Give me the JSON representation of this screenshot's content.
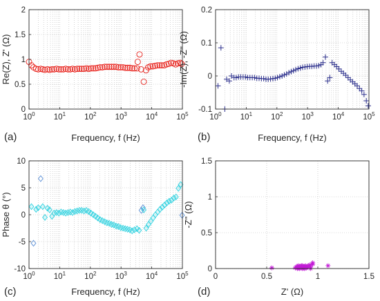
{
  "chart_data": [
    {
      "id": "a",
      "panel_label": "(a)",
      "type": "scatter",
      "marker": "circle",
      "color": "#e8201a",
      "xscale": "log",
      "xlim": [
        1,
        100000
      ],
      "ylim": [
        0,
        2
      ],
      "xlabel": "Frequency, f (Hz)",
      "ylabel": "Re(Z), Z' (Ω)",
      "yticks": [
        "0",
        "0.5",
        "1",
        "1.5",
        "2"
      ],
      "xticks": [
        "10^0",
        "10^1",
        "10^2",
        "10^3",
        "10^4",
        "10^5"
      ],
      "grid": true,
      "x": [
        1,
        1.2,
        1.4,
        1.7,
        2,
        2.4,
        2.8,
        3.3,
        4,
        4.7,
        5.6,
        6.6,
        7.9,
        9.4,
        11.1,
        13.2,
        15.7,
        18.6,
        22.1,
        26.2,
        31.2,
        37,
        44,
        52,
        62,
        74,
        88,
        104,
        124,
        147,
        174,
        207,
        246,
        292,
        347,
        412,
        489,
        581,
        690,
        820,
        974,
        1160,
        1370,
        1630,
        1940,
        2300,
        2730,
        3300,
        3500,
        4000,
        4500,
        5500,
        6500,
        7700,
        9100,
        10800,
        12900,
        15300,
        18100,
        21500,
        25600,
        30300,
        36000,
        42800,
        50800,
        60300,
        71600,
        85000,
        95000
      ],
      "y": [
        0.95,
        0.88,
        0.84,
        0.81,
        0.8,
        0.81,
        0.8,
        0.79,
        0.8,
        0.79,
        0.8,
        0.8,
        0.81,
        0.8,
        0.8,
        0.8,
        0.81,
        0.8,
        0.8,
        0.81,
        0.8,
        0.81,
        0.81,
        0.81,
        0.81,
        0.82,
        0.81,
        0.82,
        0.82,
        0.82,
        0.83,
        0.84,
        0.84,
        0.85,
        0.85,
        0.85,
        0.85,
        0.85,
        0.85,
        0.84,
        0.84,
        0.84,
        0.83,
        0.83,
        0.83,
        0.82,
        0.82,
        0.82,
        0.95,
        1.1,
        0.8,
        0.55,
        0.78,
        0.84,
        0.86,
        0.86,
        0.87,
        0.88,
        0.88,
        0.88,
        0.88,
        0.9,
        0.91,
        0.93,
        0.92,
        0.9,
        0.92,
        0.93,
        0.91
      ]
    },
    {
      "id": "b",
      "panel_label": "(b)",
      "type": "scatter",
      "marker": "plus",
      "color": "#2b2f8c",
      "xscale": "log",
      "xlim": [
        1,
        100000
      ],
      "ylim": [
        -0.1,
        0.2
      ],
      "xlabel": "Frequency, f (Hz)",
      "ylabel": "-Im(Z), -Z'' (Ω)",
      "yticks": [
        "-0.1",
        "0",
        "0.1",
        "0.2"
      ],
      "xticks": [
        "10^0",
        "10^1",
        "10^2",
        "10^3",
        "10^4",
        "10^5"
      ],
      "grid": true,
      "x": [
        1.2,
        1.5,
        2,
        2.3,
        2.8,
        3.3,
        4,
        4.7,
        5.6,
        6.6,
        7.9,
        9.4,
        11.1,
        13.2,
        15.7,
        18.6,
        22.1,
        26.2,
        31.2,
        37,
        44,
        52,
        62,
        74,
        88,
        104,
        124,
        147,
        174,
        207,
        246,
        292,
        347,
        412,
        489,
        581,
        690,
        820,
        974,
        1160,
        1370,
        1630,
        1940,
        2300,
        2730,
        3200,
        3800,
        4500,
        5300,
        6300,
        7500,
        8900,
        10500,
        12500,
        14800,
        17600,
        20900,
        24800,
        29400,
        34900,
        41400,
        49100,
        58300,
        69100,
        82000,
        95000
      ],
      "y": [
        -0.03,
        0.085,
        -0.1,
        -0.01,
        -0.015,
        0.0,
        -0.005,
        -0.005,
        -0.003,
        -0.003,
        -0.003,
        -0.003,
        -0.005,
        -0.005,
        -0.005,
        -0.005,
        -0.007,
        -0.007,
        -0.008,
        -0.008,
        -0.01,
        -0.01,
        -0.009,
        -0.008,
        -0.007,
        -0.005,
        -0.002,
        0.0,
        0.003,
        0.006,
        0.01,
        0.013,
        0.016,
        0.019,
        0.022,
        0.024,
        0.026,
        0.027,
        0.028,
        0.029,
        0.029,
        0.03,
        0.03,
        0.031,
        0.034,
        0.04,
        0.057,
        -0.015,
        -0.005,
        0.04,
        0.034,
        0.028,
        0.021,
        0.014,
        0.008,
        0.002,
        -0.005,
        -0.012,
        -0.018,
        -0.024,
        -0.03,
        -0.038,
        -0.045,
        -0.056,
        -0.075,
        -0.09
      ]
    },
    {
      "id": "c",
      "panel_label": "(c)",
      "type": "scatter",
      "marker": "diamond",
      "color": "#33d2e0",
      "outlier_color": "#5b8fd6",
      "xscale": "log",
      "xlim": [
        1,
        100000
      ],
      "ylim": [
        -10,
        10
      ],
      "xlabel": "Frequency, f (Hz)",
      "ylabel": "Phase θ (°)",
      "yticks": [
        "-10",
        "-5",
        "0",
        "5",
        "10"
      ],
      "xticks": [
        "10^0",
        "10^1",
        "10^2",
        "10^3",
        "10^4",
        "10^5"
      ],
      "grid": true,
      "x": [
        1.2,
        1.4,
        1.7,
        2,
        2.4,
        2.8,
        3.3,
        4,
        4.7,
        5.6,
        6.6,
        7.9,
        9.4,
        11.1,
        13.2,
        15.7,
        18.6,
        22.1,
        26.2,
        31.2,
        37,
        44,
        52,
        62,
        74,
        88,
        104,
        124,
        147,
        174,
        207,
        246,
        292,
        347,
        412,
        489,
        581,
        690,
        820,
        974,
        1160,
        1370,
        1630,
        1940,
        2300,
        2730,
        3300,
        3900,
        4600,
        5200,
        5500,
        6600,
        7900,
        9400,
        11100,
        13200,
        15700,
        18600,
        22100,
        26200,
        31200,
        37000,
        44000,
        52300,
        62000,
        74000,
        88000,
        98000
      ],
      "y": [
        1.5,
        -5.3,
        1.0,
        1.3,
        6.7,
        1.5,
        -0.5,
        1.2,
        0.9,
        -0.3,
        0.3,
        0.4,
        0.3,
        0.5,
        0.4,
        0.3,
        0.4,
        0.5,
        0.4,
        0.6,
        0.7,
        0.8,
        0.8,
        0.7,
        0.8,
        0.6,
        0.3,
        0.0,
        -0.3,
        -0.6,
        -0.9,
        -1.1,
        -1.3,
        -1.5,
        -1.6,
        -1.8,
        -1.9,
        -2.1,
        -2.2,
        -2.4,
        -2.5,
        -2.6,
        -2.7,
        -2.8,
        -3.0,
        -2.8,
        -2.6,
        -2.9,
        0.8,
        1.3,
        0.9,
        -2.5,
        -1.8,
        -1.2,
        -0.6,
        0.0,
        0.5,
        1.0,
        1.4,
        1.8,
        2.2,
        2.5,
        2.7,
        3.1,
        3.3,
        4.9,
        5.6,
        -0.1
      ],
      "outliers_idx": [
        1,
        4,
        48,
        49,
        67
      ]
    },
    {
      "id": "d",
      "panel_label": "(d)",
      "type": "scatter",
      "marker": "star",
      "color": "#c21ad6",
      "xlim": [
        0,
        1.5
      ],
      "ylim": [
        0,
        1.5
      ],
      "xlabel": "Z' (Ω)",
      "ylabel": "-Z'' (Ω)",
      "xticks": [
        "0",
        "0.5",
        "1",
        "1.5"
      ],
      "yticks": [
        "0",
        "0.5",
        "1",
        "1.5"
      ],
      "grid": true,
      "x": [
        0.78,
        0.79,
        0.8,
        0.8,
        0.81,
        0.81,
        0.82,
        0.82,
        0.83,
        0.83,
        0.84,
        0.84,
        0.85,
        0.85,
        0.86,
        0.86,
        0.87,
        0.88,
        0.88,
        0.89,
        0.9,
        0.91,
        0.92,
        0.93,
        0.95,
        0.8,
        0.82,
        0.84,
        0.86,
        0.88,
        0.9,
        0.85,
        0.83,
        0.81,
        0.87,
        0.89,
        0.93,
        1.1,
        0.95,
        0.55
      ],
      "y": [
        0.01,
        0.02,
        0.0,
        0.03,
        0.01,
        0.04,
        0.02,
        0.0,
        0.03,
        0.01,
        0.02,
        0.04,
        0.0,
        0.03,
        0.01,
        0.02,
        0.03,
        0.04,
        0.01,
        0.02,
        0.03,
        0.04,
        0.05,
        0.02,
        0.08,
        0.02,
        0.03,
        0.01,
        0.02,
        0.03,
        0.02,
        0.04,
        0.02,
        0.01,
        0.0,
        0.01,
        0.0,
        0.04,
        0.06,
        0.01
      ]
    }
  ]
}
